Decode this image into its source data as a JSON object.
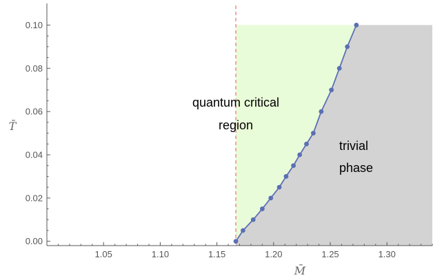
{
  "chart_data": {
    "type": "line",
    "xlabel": "M̄",
    "ylabel": "T̄",
    "xlim": [
      1.0,
      1.34
    ],
    "ylim": [
      -0.002,
      0.11
    ],
    "x_ticks": [
      1.05,
      1.1,
      1.15,
      1.2,
      1.25,
      1.3
    ],
    "y_ticks": [
      0.0,
      0.02,
      0.04,
      0.06,
      0.08,
      0.1
    ],
    "x_tick_labels": [
      "1.05",
      "1.10",
      "1.15",
      "1.20",
      "1.25",
      "1.30"
    ],
    "y_tick_labels": [
      "0.00",
      "0.02",
      "0.04",
      "0.06",
      "0.08",
      "0.10"
    ],
    "critical_line_x": 1.1667,
    "series": [
      {
        "x": [
          1.1667,
          1.173,
          1.182,
          1.19,
          1.1975,
          1.205,
          1.211,
          1.2175,
          1.223,
          1.229,
          1.235,
          1.242,
          1.251,
          1.258,
          1.265,
          1.273
        ],
        "y": [
          0.0,
          0.005,
          0.01,
          0.015,
          0.02,
          0.025,
          0.03,
          0.035,
          0.04,
          0.045,
          0.05,
          0.06,
          0.07,
          0.08,
          0.09,
          0.1
        ]
      }
    ],
    "regions": [
      {
        "label_lines": [
          "quantum critical",
          "region"
        ],
        "color": "#e9fcd9"
      },
      {
        "label_lines": [
          "trivial",
          "phase"
        ],
        "color": "#d3d3d3"
      }
    ],
    "colors": {
      "curve": "#5b6fb5",
      "critical_line": "#f08080",
      "axis": "#555555"
    },
    "grid": false,
    "legend": "none"
  }
}
